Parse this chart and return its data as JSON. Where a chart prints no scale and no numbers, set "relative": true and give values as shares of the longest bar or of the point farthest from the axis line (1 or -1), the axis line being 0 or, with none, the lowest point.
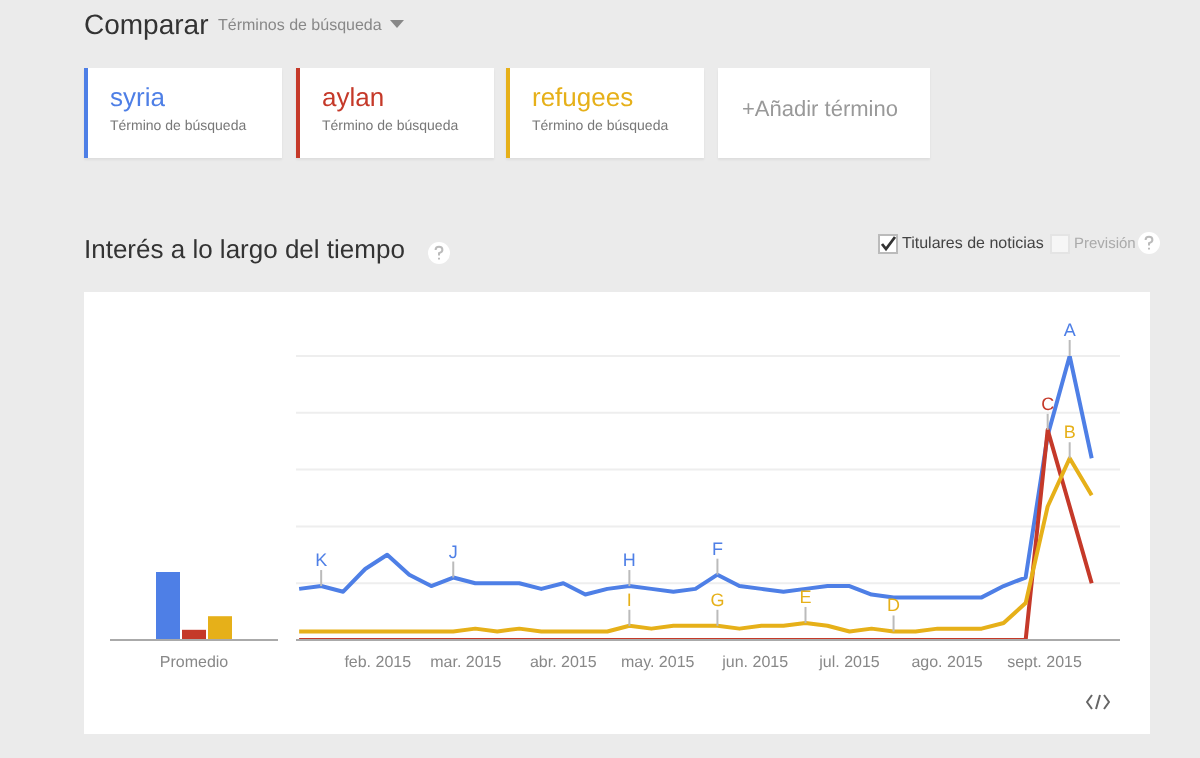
{
  "chart_data": [
    {
      "type": "other",
      "title": "Comparar",
      "subtitle": "Términos de búsqueda",
      "annotations": [
        "Término de búsqueda",
        "Término de búsqueda",
        "Término de búsqueda",
        "+Añadir término"
      ]
    },
    {
      "type": "bar",
      "relative": true,
      "categories": [
        "Promedio"
      ],
      "series": [
        {
          "color": "#4e7fe6",
          "values": [
            1
          ]
        },
        {
          "color": "#c53929",
          "values": [
            0.15
          ]
        },
        {
          "color": "#e6b019",
          "values": [
            0.35
          ]
        }
      ]
    },
    {
      "type": "line",
      "title": "Interés a lo largo del tiempo",
      "relative": true,
      "grid": "y",
      "legend": "top",
      "x": [
        "2015-01-07",
        "2015-01-14",
        "2015-01-21",
        "2015-01-28",
        "2015-02-04",
        "2015-02-11",
        "2015-02-18",
        "2015-02-25",
        "2015-03-04",
        "2015-03-11",
        "2015-03-18",
        "2015-03-25",
        "2015-04-01",
        "2015-04-08",
        "2015-04-15",
        "2015-04-22",
        "2015-04-29",
        "2015-05-06",
        "2015-05-13",
        "2015-05-20",
        "2015-05-27",
        "2015-06-03",
        "2015-06-10",
        "2015-06-17",
        "2015-06-24",
        "2015-07-01",
        "2015-07-08",
        "2015-07-15",
        "2015-07-22",
        "2015-07-29",
        "2015-08-05",
        "2015-08-12",
        "2015-08-19",
        "2015-08-26",
        "2015-09-02",
        "2015-09-09",
        "2015-09-16"
      ],
      "xlim": [
        "2015-01-06",
        "2015-09-25"
      ],
      "xticks": [
        {
          "value": "2015-02-01",
          "label": "feb. 2015"
        },
        {
          "value": "2015-03-01",
          "label": "mar. 2015"
        },
        {
          "value": "2015-04-01",
          "label": "abr. 2015"
        },
        {
          "value": "2015-05-01",
          "label": "may. 2015"
        },
        {
          "value": "2015-06-01",
          "label": "jun. 2015"
        },
        {
          "value": "2015-07-01",
          "label": "jul. 2015"
        },
        {
          "value": "2015-08-01",
          "label": "ago. 2015"
        },
        {
          "value": "2015-09-01",
          "label": "sept. 2015"
        }
      ],
      "series": [
        {
          "name": "syria",
          "color": "#4e7fe6",
          "values": [
            0.18,
            0.19,
            0.17,
            0.25,
            0.3,
            0.23,
            0.19,
            0.22,
            0.2,
            0.2,
            0.2,
            0.18,
            0.2,
            0.16,
            0.18,
            0.19,
            0.18,
            0.17,
            0.18,
            0.23,
            0.19,
            0.18,
            0.17,
            0.18,
            0.19,
            0.19,
            0.16,
            0.15,
            0.15,
            0.15,
            0.15,
            0.15,
            0.19,
            0.22,
            0.72,
            1,
            0.64
          ]
        },
        {
          "name": "aylan",
          "color": "#c53929",
          "values": [
            0,
            0,
            0,
            0,
            0,
            0,
            0,
            0,
            0,
            0,
            0,
            0,
            0,
            0,
            0,
            0,
            0,
            0,
            0,
            0,
            0,
            0,
            0,
            0,
            0,
            0,
            0,
            0,
            0,
            0,
            0,
            0,
            0,
            0,
            0.74,
            0.47,
            0.2
          ]
        },
        {
          "name": "refugees",
          "color": "#e6b019",
          "values": [
            0.03,
            0.03,
            0.03,
            0.03,
            0.03,
            0.03,
            0.03,
            0.03,
            0.04,
            0.03,
            0.04,
            0.03,
            0.03,
            0.03,
            0.03,
            0.05,
            0.04,
            0.05,
            0.05,
            0.05,
            0.04,
            0.05,
            0.05,
            0.06,
            0.05,
            0.03,
            0.04,
            0.03,
            0.03,
            0.04,
            0.04,
            0.04,
            0.06,
            0.13,
            0.47,
            0.64,
            0.51
          ]
        }
      ],
      "annotations": [
        "Titulares de noticias",
        "Previsión",
        {
          "text": "K",
          "x": "2015-01-14",
          "y": 0.19
        },
        {
          "text": "J",
          "x": "2015-02-25",
          "y": 0.22
        },
        {
          "text": "H",
          "x": "2015-04-22",
          "y": 0.19
        },
        {
          "text": "F",
          "x": "2015-05-20",
          "y": 0.23
        },
        {
          "text": "I",
          "x": "2015-04-22",
          "y": 0.05
        },
        {
          "text": "G",
          "x": "2015-05-20",
          "y": 0.05
        },
        {
          "text": "E",
          "x": "2015-06-17",
          "y": 0.06
        },
        {
          "text": "D",
          "x": "2015-07-15",
          "y": 0.03
        },
        {
          "text": "C",
          "x": "2015-09-02",
          "y": 0.74
        },
        {
          "text": "A",
          "x": "2015-09-09",
          "y": 1
        },
        {
          "text": "B",
          "x": "2015-09-09",
          "y": 0.64
        }
      ]
    }
  ]
}
